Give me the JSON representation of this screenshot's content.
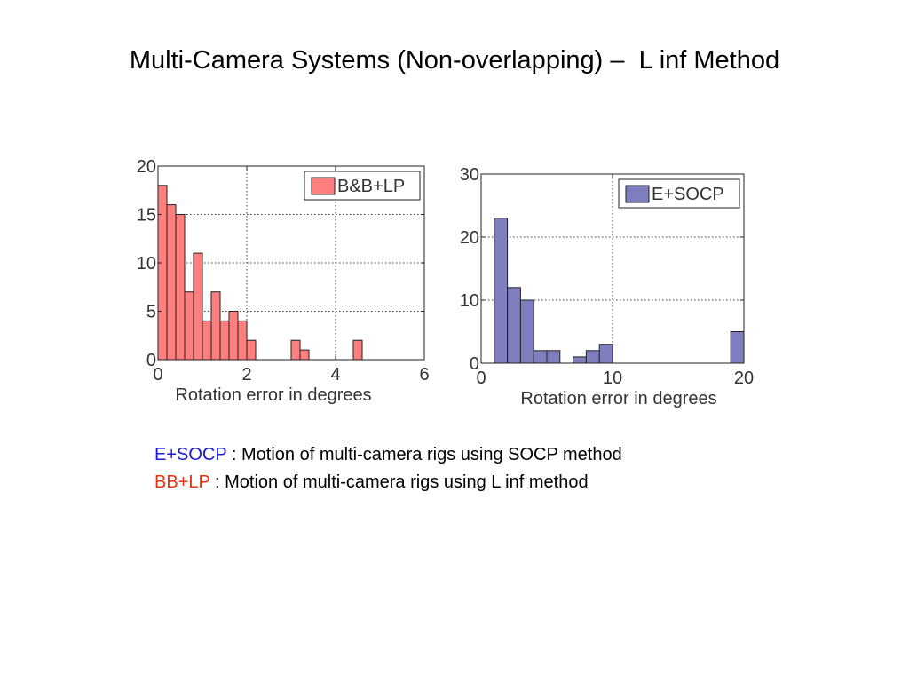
{
  "page": {
    "title": "Multi-Camera Systems (Non-overlapping) –  L inf Method"
  },
  "notes": [
    {
      "key": "E+SOCP",
      "key_color": "#1a1adb",
      "text": " : Motion of multi-camera rigs using SOCP method"
    },
    {
      "key": "BB+LP",
      "key_color": "#e8320e",
      "text": " : Motion of multi-camera rigs using L inf method"
    }
  ],
  "chart_data": [
    {
      "type": "bar",
      "subtype": "histogram",
      "xlabel": "Rotation error in degrees",
      "ylabel": "",
      "xlim": [
        0,
        6
      ],
      "ylim": [
        0,
        20
      ],
      "xticks": [
        0,
        2,
        4,
        6
      ],
      "yticks": [
        0,
        5,
        10,
        15,
        20
      ],
      "bin_width": 0.2,
      "grid": true,
      "legend_position": "top-right",
      "series": [
        {
          "name": "B&B+LP",
          "color": "#ff7f7f",
          "bins": [
            {
              "x0": 0.0,
              "value": 18
            },
            {
              "x0": 0.2,
              "value": 16
            },
            {
              "x0": 0.4,
              "value": 15
            },
            {
              "x0": 0.6,
              "value": 7
            },
            {
              "x0": 0.8,
              "value": 11
            },
            {
              "x0": 1.0,
              "value": 4
            },
            {
              "x0": 1.2,
              "value": 7
            },
            {
              "x0": 1.4,
              "value": 4
            },
            {
              "x0": 1.6,
              "value": 5
            },
            {
              "x0": 1.8,
              "value": 4
            },
            {
              "x0": 2.0,
              "value": 2
            },
            {
              "x0": 3.0,
              "value": 2
            },
            {
              "x0": 3.2,
              "value": 1
            },
            {
              "x0": 4.4,
              "value": 2
            }
          ]
        }
      ]
    },
    {
      "type": "bar",
      "subtype": "histogram",
      "xlabel": "Rotation error in degrees",
      "ylabel": "",
      "xlim": [
        0,
        20
      ],
      "ylim": [
        0,
        30
      ],
      "xticks": [
        0,
        10,
        20
      ],
      "yticks": [
        0,
        10,
        20,
        30
      ],
      "bin_width": 1,
      "grid": true,
      "legend_position": "top-right",
      "series": [
        {
          "name": "E+SOCP",
          "color": "#7f7fbf",
          "bins": [
            {
              "x0": 1,
              "value": 23
            },
            {
              "x0": 2,
              "value": 12
            },
            {
              "x0": 3,
              "value": 10
            },
            {
              "x0": 4,
              "value": 2
            },
            {
              "x0": 5,
              "value": 2
            },
            {
              "x0": 7,
              "value": 1
            },
            {
              "x0": 8,
              "value": 2
            },
            {
              "x0": 9,
              "value": 3
            },
            {
              "x0": 19,
              "value": 5
            }
          ]
        }
      ]
    }
  ]
}
